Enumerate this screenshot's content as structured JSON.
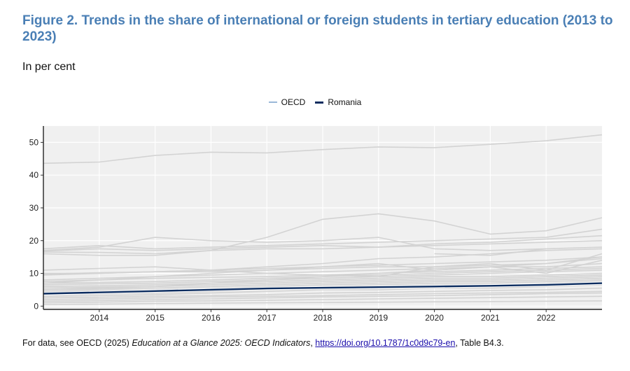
{
  "title": "Figure 2. Trends in the share of international or foreign students in tertiary education (2013 to 2023)",
  "subtitle": "In per cent",
  "legend": [
    {
      "label": "OECD",
      "color": "#9ab8d8"
    },
    {
      "label": "Romania",
      "color": "#0b2c5f"
    }
  ],
  "source": {
    "prefix": "For data, see OECD (2025) ",
    "publication": "Education at a Glance 2025: OECD Indicators",
    "sep": ", ",
    "link": "https://doi.org/10.1787/1c0d9c79-en",
    "suffix": ", Table B4.3."
  },
  "chart_data": {
    "type": "line",
    "x": [
      2013,
      2014,
      2015,
      2016,
      2017,
      2018,
      2019,
      2020,
      2021,
      2022,
      2023
    ],
    "xticks": [
      "2014",
      "2015",
      "2016",
      "2017",
      "2018",
      "2019",
      "2020",
      "2021",
      "2022"
    ],
    "yticks": [
      "0",
      "10",
      "20",
      "30",
      "40",
      "50"
    ],
    "ylim": [
      -1,
      55
    ],
    "grid": true,
    "legend_position": "top",
    "highlight": {
      "name": "Romania",
      "color": "#0b2c5f",
      "values": [
        3.8,
        4.2,
        4.6,
        5.0,
        5.4,
        5.6,
        5.8,
        6.0,
        6.2,
        6.5,
        7.0
      ]
    },
    "series": [
      {
        "values": [
          43.6,
          44.0,
          46.0,
          47.0,
          46.8,
          47.8,
          48.6,
          48.4,
          49.4,
          50.5,
          52.3
        ]
      },
      {
        "values": [
          16.5,
          16.4,
          16.0,
          17.0,
          21.0,
          26.5,
          28.2,
          26.0,
          22.0,
          23.0,
          27.0
        ]
      },
      {
        "values": [
          17.0,
          18.0,
          21.0,
          20.0,
          19.5,
          20.0,
          21.0,
          17.5,
          17.0,
          17.5,
          18.0
        ]
      },
      {
        "values": [
          17.5,
          18.5,
          17.5,
          18.0,
          18.5,
          19.0,
          19.5,
          20.0,
          20.5,
          21.0,
          23.5
        ]
      },
      {
        "values": [
          16.0,
          15.5,
          15.5,
          17.0,
          17.5,
          17.5,
          18.0,
          18.5,
          19.0,
          19.5,
          20.0
        ]
      },
      {
        "values": [
          16.8,
          17.5,
          17.0,
          17.5,
          18.0,
          18.5,
          18.0,
          19.0,
          19.5,
          20.5,
          21.5
        ]
      },
      {
        "values": [
          9.5,
          10.0,
          10.5,
          11.0,
          12.0,
          13.0,
          14.5,
          15.0,
          16.0,
          17.0,
          17.5
        ]
      },
      {
        "values": [
          9.8,
          10.2,
          10.5,
          11.0,
          11.5,
          12.0,
          12.5,
          13.0,
          13.5,
          14.0,
          15.0
        ]
      },
      {
        "values": [
          10.0,
          10.0,
          10.5,
          10.5,
          11.0,
          11.5,
          12.0,
          12.0,
          12.5,
          13.0,
          14.5
        ]
      },
      {
        "values": [
          8.0,
          8.5,
          9.0,
          9.5,
          10.0,
          10.5,
          11.0,
          11.5,
          12.0,
          12.0,
          13.0
        ]
      },
      {
        "values": [
          7.5,
          8.0,
          8.5,
          8.8,
          9.0,
          9.5,
          10.0,
          10.5,
          11.0,
          11.5,
          12.0
        ]
      },
      {
        "values": [
          7.0,
          7.2,
          7.5,
          8.0,
          8.5,
          9.0,
          9.5,
          10.0,
          10.5,
          11.0,
          11.5
        ]
      },
      {
        "values": [
          6.5,
          6.8,
          7.0,
          7.5,
          8.0,
          8.5,
          9.0,
          9.5,
          10.0,
          10.5,
          11.0
        ]
      },
      {
        "values": [
          6.0,
          6.2,
          6.5,
          7.0,
          7.5,
          8.0,
          8.5,
          9.0,
          9.0,
          9.5,
          10.0
        ]
      },
      {
        "values": [
          5.5,
          5.8,
          6.0,
          6.5,
          7.0,
          7.5,
          8.0,
          8.5,
          8.5,
          9.0,
          9.5
        ]
      },
      {
        "values": [
          5.0,
          5.2,
          5.5,
          6.0,
          6.5,
          7.0,
          7.5,
          8.0,
          8.0,
          8.5,
          9.0
        ]
      },
      {
        "values": [
          4.5,
          4.8,
          5.0,
          5.5,
          6.0,
          6.5,
          7.0,
          7.5,
          7.5,
          8.0,
          8.5
        ]
      },
      {
        "values": [
          4.0,
          4.2,
          4.5,
          5.0,
          5.5,
          6.0,
          6.5,
          7.0,
          7.0,
          7.5,
          8.0
        ]
      },
      {
        "values": [
          3.5,
          3.7,
          4.0,
          4.5,
          5.0,
          5.5,
          6.0,
          6.5,
          6.5,
          7.0,
          7.5
        ]
      },
      {
        "values": [
          3.0,
          3.2,
          3.5,
          4.0,
          4.5,
          5.0,
          5.0,
          5.5,
          5.5,
          6.0,
          6.5
        ]
      },
      {
        "values": [
          2.5,
          2.7,
          3.0,
          3.2,
          3.5,
          4.0,
          4.2,
          4.5,
          4.8,
          5.0,
          5.5
        ]
      },
      {
        "values": [
          2.0,
          2.2,
          2.5,
          2.8,
          3.0,
          3.2,
          3.5,
          3.8,
          4.0,
          4.2,
          4.5
        ]
      },
      {
        "values": [
          1.5,
          1.7,
          2.0,
          2.2,
          2.5,
          2.8,
          3.0,
          3.2,
          3.5,
          3.8,
          4.0
        ]
      },
      {
        "values": [
          1.0,
          1.2,
          1.5,
          1.6,
          1.8,
          2.0,
          2.2,
          2.4,
          2.6,
          2.8,
          3.0
        ]
      },
      {
        "values": [
          0.5,
          0.6,
          0.8,
          0.9,
          1.0,
          1.1,
          1.2,
          1.3,
          1.4,
          1.5,
          1.6
        ]
      },
      {
        "values": [
          11.0,
          11.5,
          12.0,
          11.0,
          10.0,
          9.5,
          9.0,
          12.0,
          13.0,
          11.0,
          16.0
        ]
      },
      {
        "values": [
          7.0,
          8.0,
          9.0,
          10.0,
          11.0,
          12.0,
          13.0,
          11.0,
          12.0,
          10.0,
          14.0
        ]
      },
      {
        "values": [
          5.0,
          5.5,
          6.0,
          7.0,
          8.0,
          9.0,
          10.0,
          11.0,
          12.0,
          13.0,
          15.0
        ]
      },
      {
        "values": [
          null,
          null,
          null,
          null,
          null,
          null,
          null,
          16.0,
          15.5,
          17.5,
          null
        ]
      }
    ]
  }
}
